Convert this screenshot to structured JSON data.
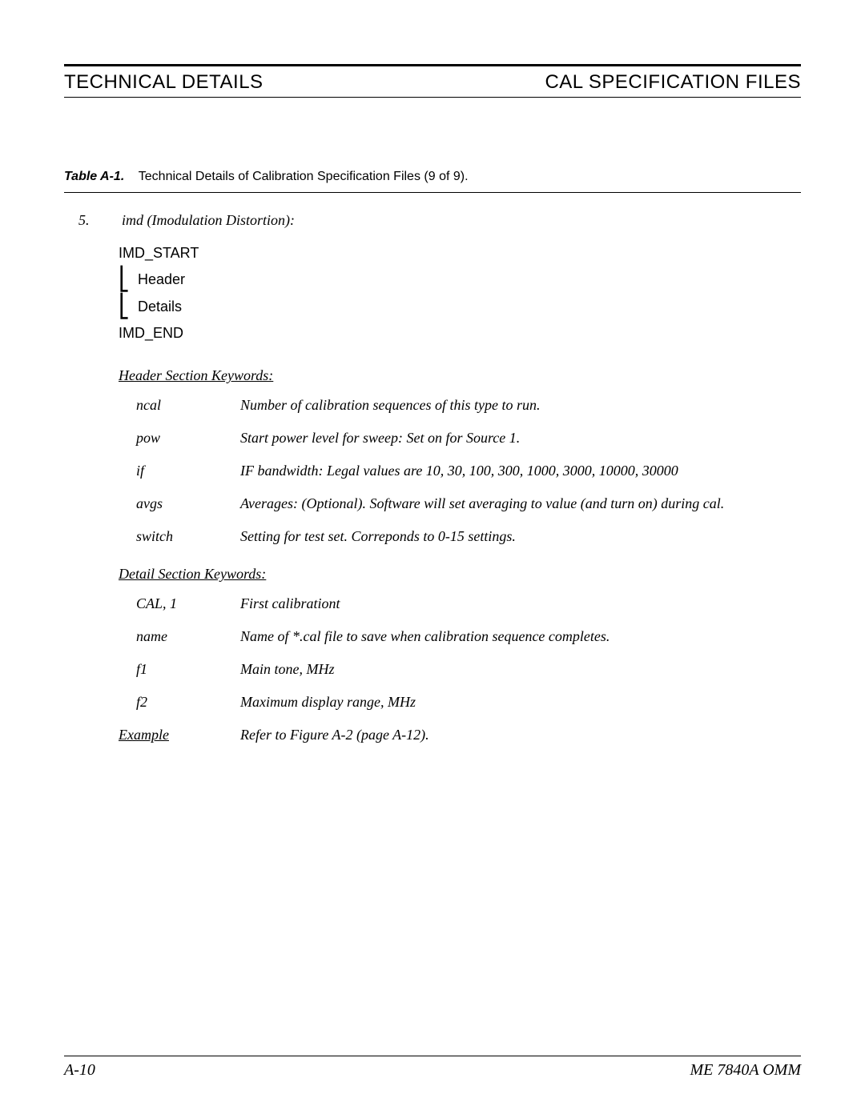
{
  "header": {
    "left": "TECHNICAL DETAILS",
    "right": "CAL SPECIFICATION FILES"
  },
  "caption": {
    "label": "Table A-1.",
    "text": "Technical Details of Calibration Specification Files (9 of 9)."
  },
  "item": {
    "number": "5.",
    "title": "imd (Imodulation Distortion):",
    "struct": {
      "start": "IMD_START",
      "header": "Header",
      "details": "Details",
      "end": "IMD_END"
    }
  },
  "headerKeywords": {
    "title": "Header Section Keywords:",
    "rows": [
      {
        "k": "ncal",
        "v": "Number of calibration sequences of this type to run."
      },
      {
        "k": "pow",
        "v": "Start power level for sweep: Set on for Source 1."
      },
      {
        "k": "if",
        "v": "IF bandwidth: Legal values are 10, 30, 100, 300, 1000, 3000, 10000, 30000"
      },
      {
        "k": "avgs",
        "v": "Averages: (Optional). Software will set averaging to value (and turn on) during cal."
      },
      {
        "k": "switch",
        "v": "Setting for test set. Correponds to 0-15 settings."
      }
    ]
  },
  "detailKeywords": {
    "title": "Detail Section Keywords:",
    "rows": [
      {
        "k": "CAL, 1",
        "v": "First calibrationt"
      },
      {
        "k": "name",
        "v": "Name of *.cal file to save when calibration sequence completes."
      },
      {
        "k": "f1",
        "v": "Main tone, MHz"
      },
      {
        "k": "f2",
        "v": "Maximum display range, MHz"
      }
    ]
  },
  "example": {
    "k": "Example",
    "v": "Refer to Figure A-2 (page A-12)."
  },
  "footer": {
    "left": "A-10",
    "right": "ME 7840A OMM"
  }
}
